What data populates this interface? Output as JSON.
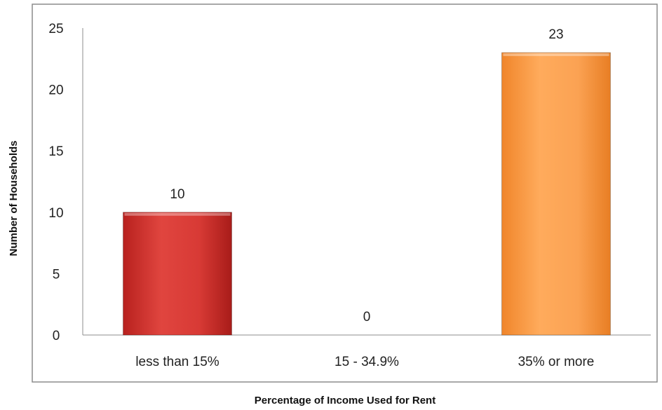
{
  "chart_data": {
    "type": "bar",
    "categories": [
      "less than 15%",
      "15 - 34.9%",
      "35% or more"
    ],
    "values": [
      10,
      0,
      23
    ],
    "data_labels": [
      "10",
      "0",
      "23"
    ],
    "xlabel": "Percentage of Income Used for Rent",
    "ylabel": "Number of Households",
    "ylim": [
      0,
      25
    ],
    "yticks": [
      0,
      5,
      10,
      15,
      20,
      25
    ],
    "grid": false,
    "legend": "none",
    "colors": [
      "#c8302d",
      "#d9d9d9",
      "#f6943f"
    ]
  }
}
